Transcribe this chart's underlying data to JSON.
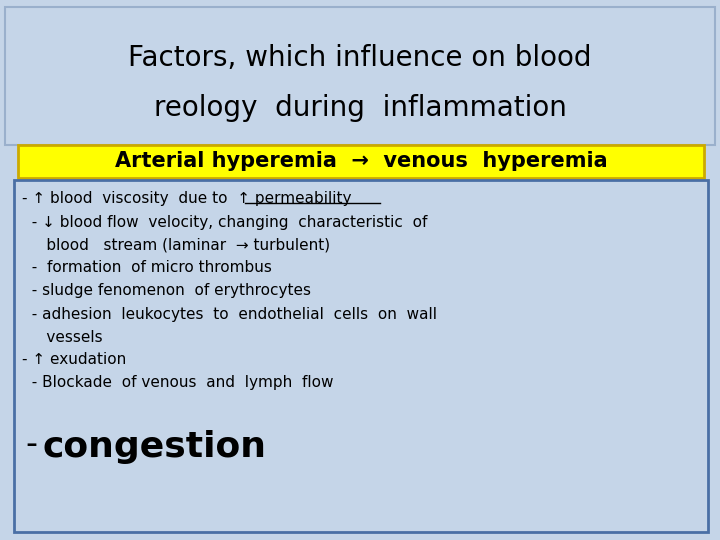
{
  "title_line1": "Factors, which influence on blood",
  "title_line2": "reology  during  inflammation",
  "title_bg": "#c5d5e8",
  "title_border": "#9ab0cc",
  "subtitle": "Arterial hyperemia  →  venous  hyperemia",
  "subtitle_bg": "#ffff00",
  "subtitle_border": "#ccaa00",
  "body_bg": "#c5d5e8",
  "body_border": "#4a6fa5",
  "overall_bg": "#c5d5e8",
  "body_text_color": "#000000",
  "title_text_color": "#000000",
  "subtitle_text_color": "#000000",
  "title_fontsize": 20,
  "subtitle_fontsize": 15,
  "body_fontsize": 11,
  "congestion_fontsize": 26
}
